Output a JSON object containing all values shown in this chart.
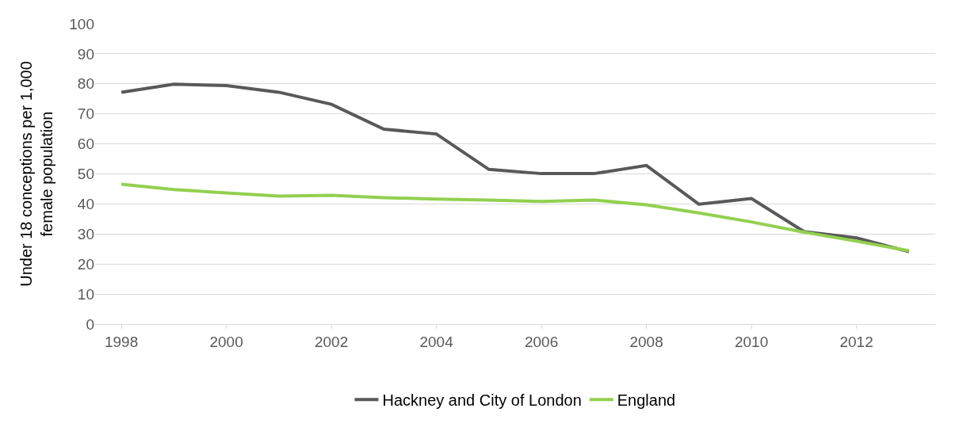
{
  "chart_data": {
    "type": "line",
    "ylabel": "Under 18 conceptions per 1,000\nfemale population",
    "x": [
      1998,
      1999,
      2000,
      2001,
      2002,
      2003,
      2004,
      2005,
      2006,
      2007,
      2008,
      2009,
      2010,
      2011,
      2012,
      2013
    ],
    "series": [
      {
        "name": "Hackney and City of London",
        "color": "#595959",
        "values": [
          77.2,
          79.9,
          79.4,
          77.2,
          73.2,
          64.9,
          63.3,
          51.5,
          50.1,
          50.1,
          52.8,
          39.9,
          41.8,
          30.8,
          28.7,
          24.1
        ]
      },
      {
        "name": "England",
        "color": "#92d050",
        "values": [
          46.6,
          44.8,
          43.7,
          42.6,
          42.9,
          42.1,
          41.6,
          41.3,
          40.8,
          41.3,
          39.7,
          37.0,
          34.0,
          30.6,
          27.6,
          24.4
        ]
      }
    ],
    "xlim": [
      1997.5,
      2013.5
    ],
    "xticks": [
      1998,
      2000,
      2002,
      2004,
      2006,
      2008,
      2010,
      2012
    ],
    "ylim": [
      0,
      100
    ],
    "yticks": [
      0,
      10,
      20,
      30,
      40,
      50,
      60,
      70,
      80,
      90,
      100
    ],
    "grid": "y",
    "legend": "bottom",
    "marker": "none",
    "line_style": "solid"
  }
}
